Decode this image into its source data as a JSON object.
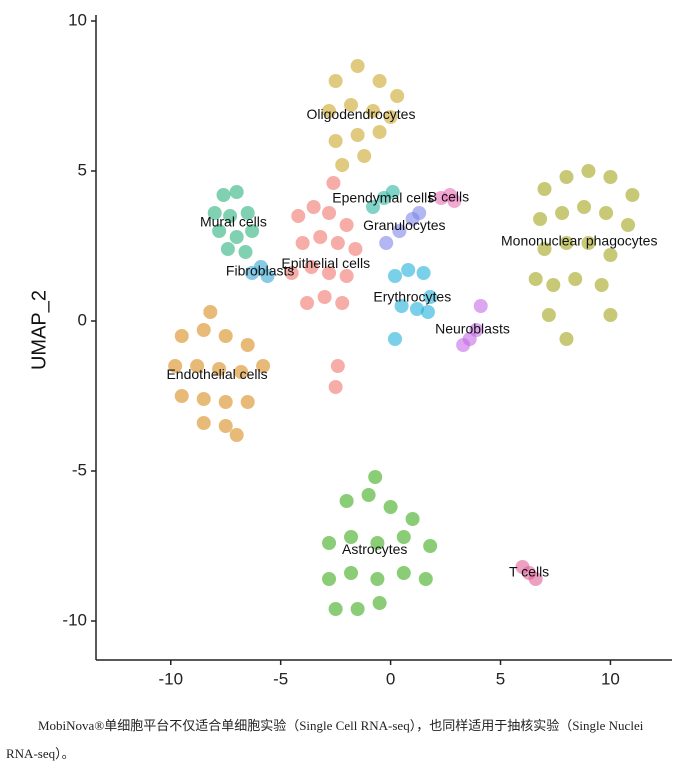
{
  "chart_data": {
    "type": "scatter",
    "ylabel": "UMAP_2",
    "xlim": [
      -13.4,
      12.8
    ],
    "ylim": [
      -11.3,
      10.2
    ],
    "xticks": [
      -10,
      -5,
      0,
      5,
      10
    ],
    "yticks": [
      -10,
      -5,
      0,
      5,
      10
    ],
    "series": [
      {
        "name": "Oligodendrocytes",
        "color": "#cba62a",
        "x": [
          -2.5,
          -1.5,
          -0.5,
          0.3,
          -2.8,
          -1.8,
          -0.8,
          0,
          -2.5,
          -1.5,
          -0.5,
          -2.2,
          -1.2
        ],
        "y": [
          8,
          8.5,
          8,
          7.5,
          7,
          7.2,
          7,
          6.8,
          6,
          6.2,
          6.3,
          5.2,
          5.5
        ]
      },
      {
        "name": "Epithelial cells",
        "color": "#f0776d",
        "x": [
          -4.2,
          -3.5,
          -2.8,
          -2,
          -4,
          -3.2,
          -2.4,
          -1.6,
          -4.5,
          -3.6,
          -2.8,
          -2,
          -3.8,
          -3,
          -2.2,
          -2.6,
          -2.4,
          -2.5
        ],
        "y": [
          3.5,
          3.8,
          3.6,
          3.2,
          2.6,
          2.8,
          2.6,
          2.4,
          1.6,
          1.8,
          1.6,
          1.5,
          0.6,
          0.8,
          0.6,
          4.6,
          -1.5,
          -2.2
        ]
      },
      {
        "name": "Mural cells",
        "color": "#2bb37e",
        "x": [
          -7.6,
          -7,
          -8,
          -7.3,
          -6.5,
          -7.8,
          -7,
          -6.3,
          -7.4,
          -6.6
        ],
        "y": [
          4.2,
          4.3,
          3.6,
          3.5,
          3.6,
          3,
          2.8,
          3,
          2.4,
          2.3
        ]
      },
      {
        "name": "Fibroblasts",
        "color": "#35a7d6",
        "x": [
          -6.3,
          -5.9,
          -5.6
        ],
        "y": [
          1.6,
          1.8,
          1.5
        ]
      },
      {
        "name": "Ependymal cells",
        "color": "#2bb5a0",
        "x": [
          -0.8,
          -0.3,
          0.1
        ],
        "y": [
          3.8,
          4.1,
          4.3
        ]
      },
      {
        "name": "B cells",
        "color": "#e870b8",
        "x": [
          2.3,
          2.7,
          2.9
        ],
        "y": [
          4.1,
          4.2,
          4.0
        ]
      },
      {
        "name": "Granulocytes",
        "color": "#7f86e8",
        "x": [
          -0.2,
          0.4,
          1.0,
          1.3
        ],
        "y": [
          2.6,
          3.0,
          3.4,
          3.6
        ]
      },
      {
        "name": "Mononuclear phagocytes",
        "color": "#a3a51a",
        "x": [
          7,
          8,
          9,
          10,
          11,
          6.8,
          7.8,
          8.8,
          9.8,
          10.8,
          7,
          8,
          9,
          10,
          6.6,
          7.4,
          8.4,
          9.6,
          7.2,
          8,
          10
        ],
        "y": [
          4.4,
          4.8,
          5,
          4.8,
          4.2,
          3.4,
          3.6,
          3.8,
          3.6,
          3.2,
          2.4,
          2.6,
          2.6,
          2.2,
          1.4,
          1.2,
          1.4,
          1.2,
          0.2,
          -0.6,
          0.2
        ]
      },
      {
        "name": "Erythrocytes",
        "color": "#1fb1d8",
        "x": [
          0.2,
          0.8,
          1.5,
          1.8,
          0.5,
          1.2,
          1.7,
          0.2
        ],
        "y": [
          1.5,
          1.7,
          1.6,
          0.8,
          0.5,
          0.4,
          0.3,
          -0.6
        ]
      },
      {
        "name": "Neuroblasts",
        "color": "#c56be6",
        "x": [
          3.3,
          3.6,
          3.9,
          4.1
        ],
        "y": [
          -0.8,
          -0.6,
          -0.3,
          0.5
        ]
      },
      {
        "name": "Endothelial cells",
        "color": "#d88c1c",
        "x": [
          -9.5,
          -8.5,
          -7.5,
          -6.5,
          -9.8,
          -8.8,
          -7.8,
          -6.8,
          -5.8,
          -9.5,
          -8.5,
          -7.5,
          -6.5,
          -8.5,
          -7.5,
          -7,
          -8.2
        ],
        "y": [
          -0.5,
          -0.3,
          -0.5,
          -0.8,
          -1.5,
          -1.5,
          -1.6,
          -1.7,
          -1.5,
          -2.5,
          -2.6,
          -2.7,
          -2.7,
          -3.4,
          -3.5,
          -3.8,
          0.3
        ]
      },
      {
        "name": "Astrocytes",
        "color": "#3cac1a",
        "x": [
          -2,
          -1,
          0,
          1,
          -2.8,
          -1.8,
          -0.6,
          0.6,
          1.8,
          -2.8,
          -1.8,
          -0.6,
          0.6,
          1.6,
          -2.5,
          -1.5,
          -0.5,
          -0.7
        ],
        "y": [
          -6,
          -5.8,
          -6.2,
          -6.6,
          -7.4,
          -7.2,
          -7.4,
          -7.2,
          -7.5,
          -8.6,
          -8.4,
          -8.6,
          -8.4,
          -8.6,
          -9.6,
          -9.6,
          -9.4,
          -5.2
        ]
      },
      {
        "name": "T cells",
        "color": "#e0609a",
        "x": [
          6,
          6.3,
          6.6
        ],
        "y": [
          -8.2,
          -8.4,
          -8.6
        ]
      }
    ],
    "caption": "MobiNova®单细胞平台不仅适合单细胞实验（Single Cell RNA-seq），也同样适用于抽核实验（Single Nuclei RNA-seq）。"
  }
}
